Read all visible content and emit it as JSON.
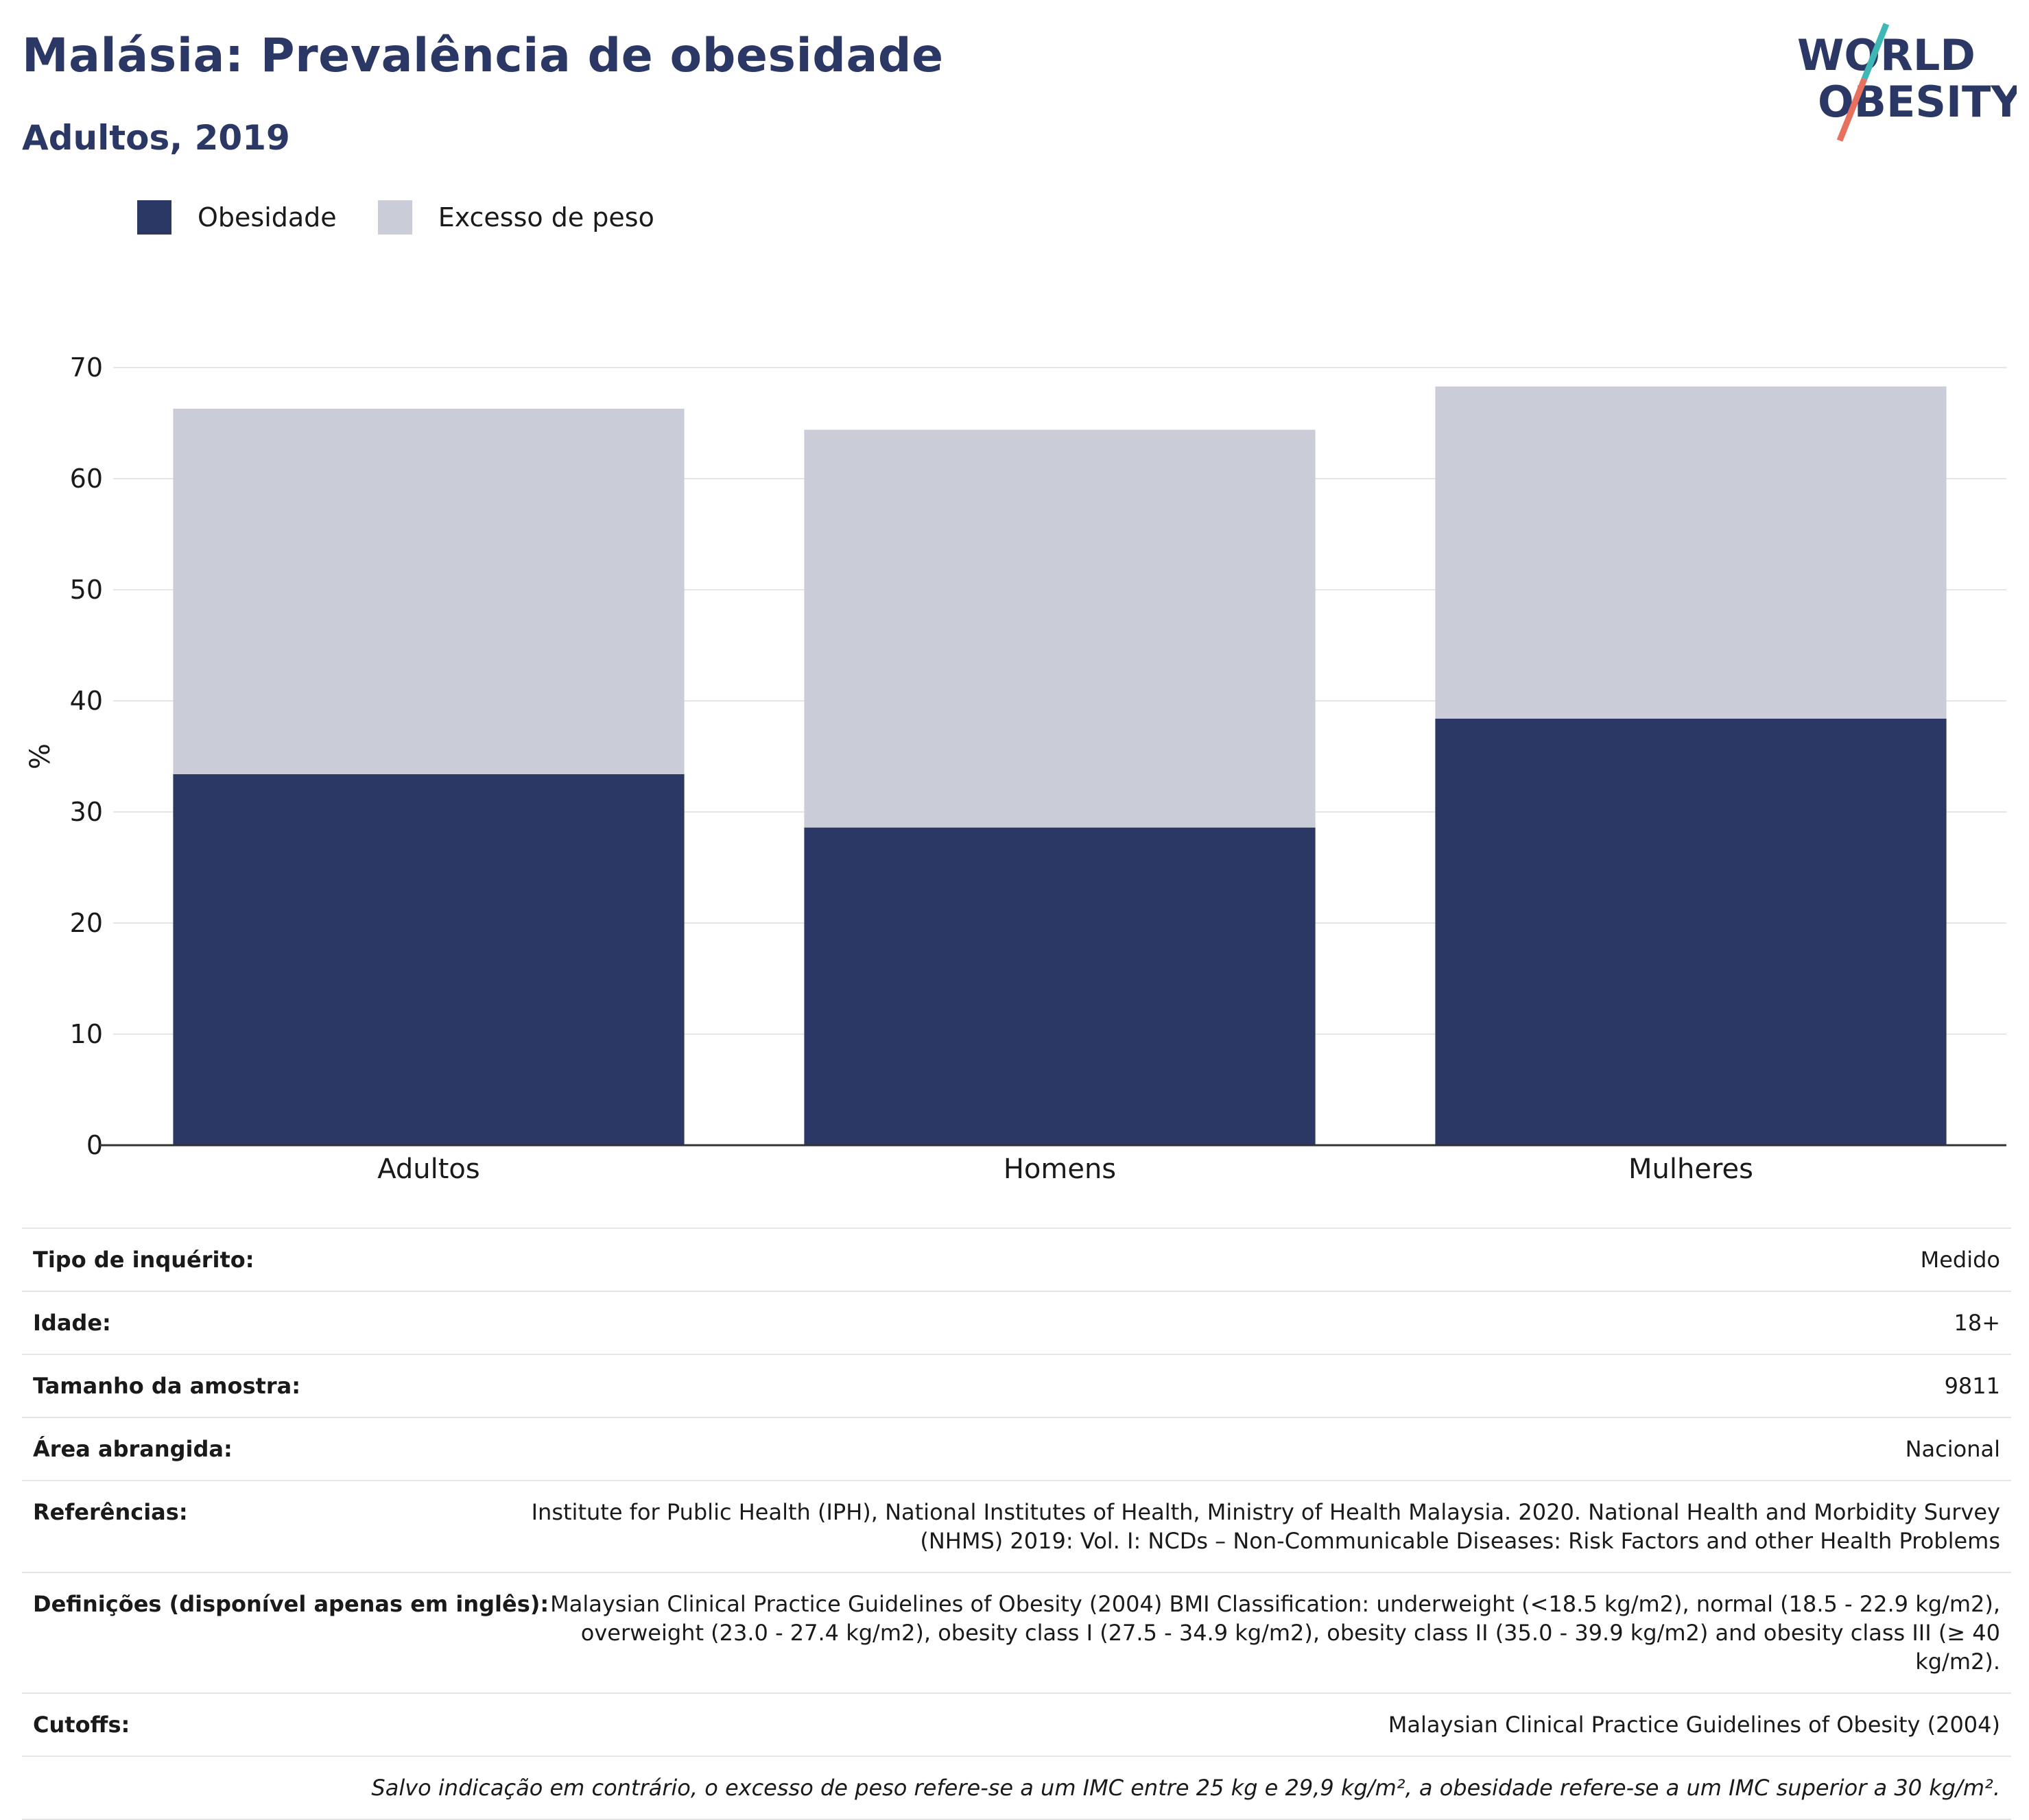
{
  "header": {
    "title": "Malásia: Prevalência de obesidade",
    "subtitle": "Adultos, 2019"
  },
  "logo": {
    "line1": "WORLD",
    "line2": "OBESITY"
  },
  "colors": {
    "obesity": "#2b3764",
    "overweight": "#cacdd8",
    "title": "#2b3764",
    "logo_teal": "#3fb8b5",
    "logo_coral": "#e8705f"
  },
  "chart_data": {
    "type": "bar",
    "stacked": true,
    "categories": [
      "Adultos",
      "Homens",
      "Mulheres"
    ],
    "series": [
      {
        "name": "Obesidade",
        "values": [
          33.4,
          28.6,
          38.4
        ]
      },
      {
        "name": "Excesso de peso",
        "values": [
          32.9,
          35.8,
          29.9
        ]
      }
    ],
    "ylabel": "%",
    "ylim": [
      0,
      70
    ],
    "yticks": [
      0,
      10,
      20,
      30,
      40,
      50,
      60,
      70
    ],
    "grid": true,
    "legend_position": "top-left"
  },
  "info": {
    "rows": [
      {
        "label": "Tipo de inquérito:",
        "value": "Medido"
      },
      {
        "label": "Idade:",
        "value": "18+"
      },
      {
        "label": "Tamanho da amostra:",
        "value": "9811"
      },
      {
        "label": "Área abrangida:",
        "value": "Nacional"
      },
      {
        "label": "Referências:",
        "value": "Institute for Public Health (IPH), National Institutes of Health, Ministry of Health Malaysia. 2020. National Health and Morbidity Survey (NHMS) 2019: Vol. I: NCDs – Non-Communicable Diseases: Risk Factors and other Health Problems"
      },
      {
        "label": "Definições (disponível apenas em inglês):",
        "value": "Malaysian Clinical Practice Guidelines of Obesity (2004) BMI Classification: underweight (<18.5 kg/m2), normal (18.5 - 22.9 kg/m2), overweight (23.0 - 27.4 kg/m2), obesity class I (27.5 - 34.9 kg/m2), obesity class II (35.0 - 39.9 kg/m2) and obesity class III (≥ 40 kg/m2)."
      },
      {
        "label": "Cutoffs:",
        "value": "Malaysian Clinical Practice Guidelines of Obesity (2004)"
      }
    ],
    "note": "Salvo indicação em contrário, o excesso de peso refere-se a um IMC entre 25 kg e 29,9 kg/m², a obesidade refere-se a um IMC superior a 30 kg/m²."
  }
}
